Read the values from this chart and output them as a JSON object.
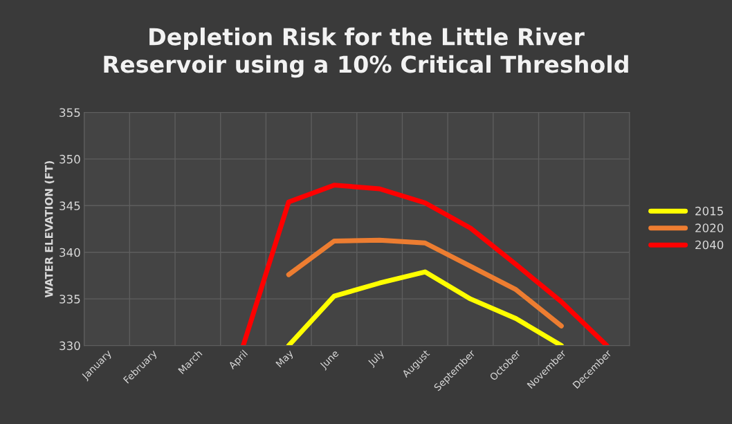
{
  "chart_data": {
    "type": "line",
    "title": "Depletion Risk for the Little River\nReservoir using a 10% Critical Threshold",
    "ylabel": "WATER ELEVATION (FT)",
    "categories": [
      "January",
      "February",
      "March",
      "April",
      "May",
      "June",
      "July",
      "August",
      "September",
      "October",
      "November",
      "December"
    ],
    "series": [
      {
        "name": "2015",
        "color": "#ffff00",
        "values": [
          null,
          null,
          null,
          null,
          330,
          335.3,
          336.7,
          337.9,
          335.0,
          332.9,
          330,
          null
        ]
      },
      {
        "name": "2020",
        "color": "#ed7d31",
        "values": [
          null,
          null,
          null,
          null,
          337.6,
          341.2,
          341.3,
          341.0,
          338.5,
          336.0,
          332.1,
          null
        ]
      },
      {
        "name": "2040",
        "color": "#ff0000",
        "values": [
          null,
          null,
          null,
          330,
          345.4,
          347.2,
          346.8,
          345.3,
          342.6,
          338.7,
          334.7,
          330
        ]
      }
    ],
    "ylim": [
      330,
      355
    ],
    "yticks": [
      330,
      335,
      340,
      345,
      350,
      355
    ],
    "grid": true,
    "legend": "right",
    "marker": "none",
    "line_style": "solid"
  }
}
